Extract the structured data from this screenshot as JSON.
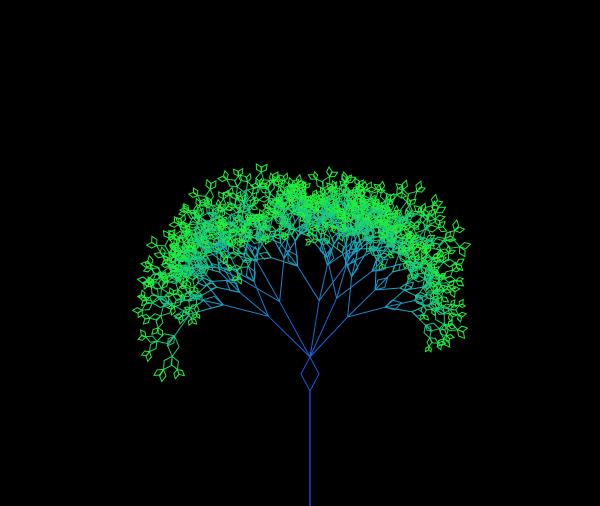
{
  "scene": {
    "subject": "fractal-tree",
    "background_color": "#000000",
    "trunk_color": "#1a2cf0",
    "mid_color": "#1aa0c8",
    "tip_color": "#22f03a"
  }
}
